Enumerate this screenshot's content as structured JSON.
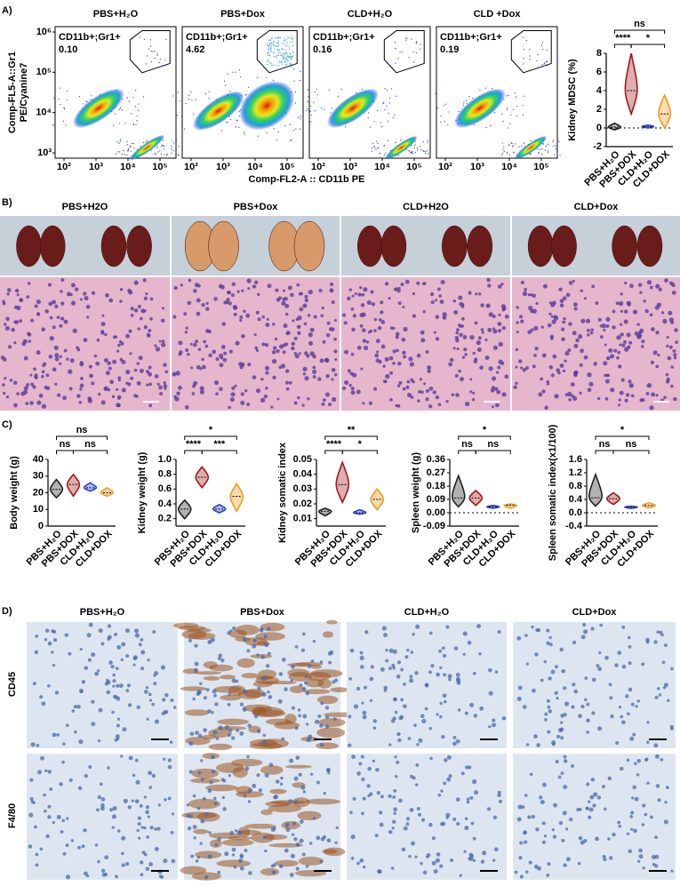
{
  "panel_labels": [
    "A)",
    "B)",
    "C)",
    "D)"
  ],
  "flow": {
    "groups": [
      {
        "title": "PBS+H₂O",
        "gate": "CD11b+;Gr1+",
        "percent": "0.10"
      },
      {
        "title": "PBS+Dox",
        "gate": "CD11b+;Gr1+",
        "percent": "4.62"
      },
      {
        "title": "CLD+H₂O",
        "gate": "CD11b+;Gr1+",
        "percent": "0.16"
      },
      {
        "title": "CLD +Dox",
        "gate": "CD11b+;Gr1+",
        "percent": "0.19"
      }
    ],
    "y_axis_label": [
      "Comp-FL5-A::Gr1",
      "PE/Cyanine7"
    ],
    "x_axis_label": "Comp-FL2-A :: CD11b PE",
    "yticks": [
      "10⁶",
      "10⁵",
      "10⁴",
      "10³"
    ],
    "xticks": [
      "10²",
      "10³",
      "10⁴",
      "10⁵"
    ]
  },
  "histology": {
    "groups": [
      "PBS+H2O",
      "PBS+Dox",
      "CLD+H2O",
      "CLD+Dox"
    ]
  },
  "ihc": {
    "groups": [
      "PBS+H₂O",
      "PBS+Dox",
      "CLD+H₂O",
      "CLD+Dox"
    ],
    "rows": [
      "CD45",
      "F4/80"
    ]
  },
  "chart_data": [
    {
      "type": "violin",
      "y_label": "Kidney MDSC (%)",
      "categories": [
        "PBS+H₂O",
        "PBS+DOX",
        "CLD+H₂O",
        "CLD+DOX"
      ],
      "colors": [
        "#222222",
        "#a01818",
        "#2a3fd0",
        "#f29a1c"
      ],
      "values": [
        0.1,
        4,
        0.15,
        1.5
      ],
      "ranges": [
        [
          -0.2,
          0.5
        ],
        [
          1.5,
          8
        ],
        [
          0,
          0.3
        ],
        [
          0,
          3.5
        ]
      ],
      "ylim": [
        -2,
        8
      ],
      "yticks": [
        -2,
        0,
        2,
        4,
        6,
        8
      ],
      "zero_line": true,
      "annotations": [
        {
          "text": "ns",
          "between": [
            "PBS+H₂O",
            "CLD+DOX"
          ]
        },
        {
          "text": "****",
          "between": [
            "PBS+H₂O",
            "PBS+DOX"
          ]
        },
        {
          "text": "*",
          "between": [
            "PBS+DOX",
            "CLD+DOX"
          ]
        }
      ]
    },
    {
      "type": "violin",
      "y_label": "Body weight (g)",
      "categories": [
        "PBS+H₂O",
        "PBS+DOX",
        "CLD+H₂O",
        "CLD+DOX"
      ],
      "colors": [
        "#222222",
        "#a01818",
        "#2a3fd0",
        "#f29a1c"
      ],
      "values": [
        22,
        25,
        23,
        20
      ],
      "ranges": [
        [
          17,
          28
        ],
        [
          18,
          31
        ],
        [
          21,
          26
        ],
        [
          18,
          23
        ]
      ],
      "ylim": [
        0,
        40
      ],
      "yticks": [
        0,
        10,
        20,
        30,
        40
      ],
      "zero_line": false,
      "annotations": [
        {
          "text": "ns",
          "between": [
            "PBS+H₂O",
            "CLD+DOX"
          ]
        },
        {
          "text": "ns",
          "between": [
            "PBS+H₂O",
            "PBS+DOX"
          ]
        },
        {
          "text": "ns",
          "between": [
            "PBS+DOX",
            "CLD+DOX"
          ]
        }
      ]
    },
    {
      "type": "violin",
      "y_label": "Kidney weight (g)",
      "categories": [
        "PBS+H₂O",
        "PBS+DOX",
        "CLD+H₂O",
        "CLD+DOX"
      ],
      "colors": [
        "#222222",
        "#a01818",
        "#2a3fd0",
        "#f29a1c"
      ],
      "values": [
        0.33,
        0.76,
        0.33,
        0.5
      ],
      "ranges": [
        [
          0.2,
          0.45
        ],
        [
          0.62,
          0.9
        ],
        [
          0.28,
          0.39
        ],
        [
          0.3,
          0.67
        ]
      ],
      "ylim": [
        0.1,
        1
      ],
      "yticks": [
        0.2,
        0.4,
        0.6,
        0.8,
        {
          "value": 1,
          "label": "1.0"
        }
      ],
      "zero_line": false,
      "annotations": [
        {
          "text": "*",
          "between": [
            "PBS+H₂O",
            "CLD+DOX"
          ]
        },
        {
          "text": "****",
          "between": [
            "PBS+H₂O",
            "PBS+DOX"
          ]
        },
        {
          "text": "***",
          "between": [
            "PBS+DOX",
            "CLD+DOX"
          ]
        }
      ]
    },
    {
      "type": "violin",
      "y_label": "Kidney somatic index",
      "categories": [
        "PBS+H₂O",
        "PBS+DOX",
        "CLD+H₂O",
        "CLD+DOX"
      ],
      "colors": [
        "#222222",
        "#a01818",
        "#2a3fd0",
        "#f29a1c"
      ],
      "values": [
        0.015,
        0.033,
        0.014,
        0.023
      ],
      "ranges": [
        [
          0.012,
          0.017
        ],
        [
          0.021,
          0.048
        ],
        [
          0.013,
          0.016
        ],
        [
          0.016,
          0.03
        ]
      ],
      "ylim": [
        0.005,
        0.05
      ],
      "yticks": [
        0.01,
        0.02,
        0.03,
        0.04,
        0.05
      ],
      "zero_line": false,
      "annotations": [
        {
          "text": "**",
          "between": [
            "PBS+H₂O",
            "CLD+DOX"
          ]
        },
        {
          "text": "****",
          "between": [
            "PBS+H₂O",
            "PBS+DOX"
          ]
        },
        {
          "text": "*",
          "between": [
            "PBS+DOX",
            "CLD+DOX"
          ]
        }
      ]
    },
    {
      "type": "violin",
      "y_label": "Spleen weight (g)",
      "categories": [
        "PBS+H₂O",
        "PBS+DOX",
        "CLD+H₂O",
        "CLD+DOX"
      ],
      "colors": [
        "#222222",
        "#a01818",
        "#2a3fd0",
        "#f29a1c"
      ],
      "values": [
        0.1,
        0.1,
        0.04,
        0.05
      ],
      "ranges": [
        [
          0.04,
          0.25
        ],
        [
          0.05,
          0.15
        ],
        [
          0.03,
          0.05
        ],
        [
          0.03,
          0.06
        ]
      ],
      "ylim": [
        -0.09,
        0.36
      ],
      "yticks": [
        -0.09,
        {
          "value": 0,
          "label": "0.00"
        },
        0.09,
        0.18,
        0.27,
        0.36
      ],
      "zero_line": true,
      "annotations": [
        {
          "text": "*",
          "between": [
            "PBS+H₂O",
            "CLD+DOX"
          ]
        },
        {
          "text": "ns",
          "between": [
            "PBS+H₂O",
            "PBS+DOX"
          ]
        },
        {
          "text": "ns",
          "between": [
            "PBS+DOX",
            "CLD+DOX"
          ]
        }
      ]
    },
    {
      "type": "violin",
      "y_label": "Spleen somatic index(x1/100)",
      "categories": [
        "PBS+H₂O",
        "PBS+DOX",
        "CLD+H₂O",
        "CLD+DOX"
      ],
      "colors": [
        "#222222",
        "#a01818",
        "#2a3fd0",
        "#f29a1c"
      ],
      "values": [
        0.45,
        0.42,
        0.17,
        0.22
      ],
      "ranges": [
        [
          0.2,
          1.15
        ],
        [
          0.25,
          0.6
        ],
        [
          0.13,
          0.2
        ],
        [
          0.15,
          0.3
        ]
      ],
      "ylim": [
        -0.4,
        1.6
      ],
      "yticks": [
        -0.4,
        {
          "value": 0,
          "label": "0.0"
        },
        0.4,
        0.8,
        1.2,
        1.6
      ],
      "zero_line": true,
      "annotations": [
        {
          "text": "*",
          "between": [
            "PBS+H₂O",
            "CLD+DOX"
          ]
        },
        {
          "text": "ns",
          "between": [
            "PBS+H₂O",
            "PBS+DOX"
          ]
        },
        {
          "text": "ns",
          "between": [
            "PBS+DOX",
            "CLD+DOX"
          ]
        }
      ]
    }
  ]
}
